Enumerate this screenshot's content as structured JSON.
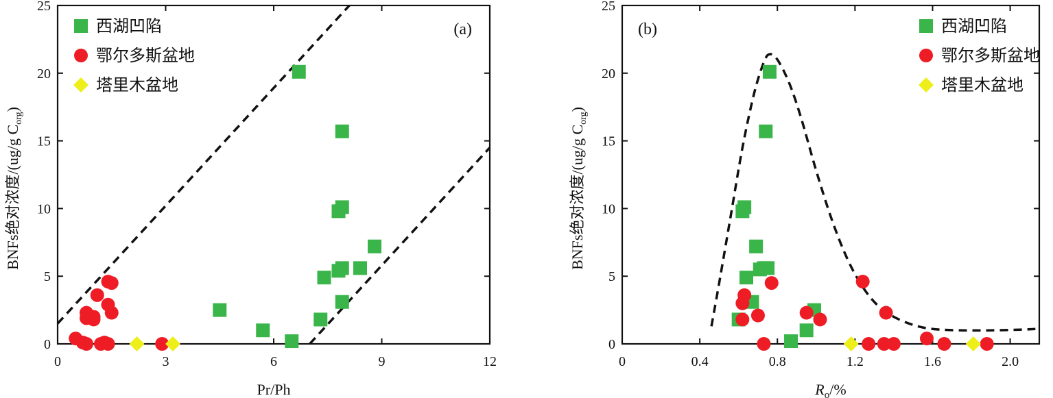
{
  "colors": {
    "xihu": "#3ab54a",
    "ordos": "#ee1c25",
    "tarim": "#eeee1a"
  },
  "legend": [
    {
      "key": "xihu",
      "label": "西湖凹陷",
      "shape": "square"
    },
    {
      "key": "ordos",
      "label": "鄂尔多斯盆地",
      "shape": "circle"
    },
    {
      "key": "tarim",
      "label": "塔里木盆地",
      "shape": "diamond"
    }
  ],
  "chart_data": [
    {
      "type": "scatter",
      "panel_label": "(a)",
      "xlabel": "Pr/Ph",
      "ylabel": {
        "main": "BNFs绝对浓度/(ug/g C",
        "sub": "org",
        "close": ")"
      },
      "xlim": [
        0,
        12
      ],
      "ylim": [
        0,
        25
      ],
      "xticks": [
        0,
        3,
        6,
        9,
        12
      ],
      "yticks": [
        0,
        5,
        10,
        15,
        20,
        25
      ],
      "legend_position": "top-left",
      "series": [
        {
          "key": "xihu",
          "name": "西湖凹陷",
          "points": [
            [
              6.7,
              20.1
            ],
            [
              7.9,
              15.7
            ],
            [
              7.9,
              10.1
            ],
            [
              7.8,
              9.8
            ],
            [
              8.8,
              7.2
            ],
            [
              7.4,
              4.9
            ],
            [
              7.8,
              5.4
            ],
            [
              7.9,
              5.6
            ],
            [
              8.4,
              5.6
            ],
            [
              7.9,
              3.1
            ],
            [
              7.3,
              1.8
            ],
            [
              4.5,
              2.5
            ],
            [
              5.7,
              1.0
            ],
            [
              6.5,
              0.2
            ]
          ]
        },
        {
          "key": "ordos",
          "name": "鄂尔多斯盆地",
          "points": [
            [
              1.4,
              4.6
            ],
            [
              1.5,
              4.5
            ],
            [
              1.1,
              3.6
            ],
            [
              1.4,
              2.9
            ],
            [
              1.5,
              2.3
            ],
            [
              0.8,
              2.3
            ],
            [
              0.8,
              1.9
            ],
            [
              1.0,
              2.0
            ],
            [
              1.0,
              1.8
            ],
            [
              0.5,
              0.4
            ],
            [
              0.7,
              0.1
            ],
            [
              0.8,
              0.0
            ],
            [
              1.2,
              0.0
            ],
            [
              1.3,
              0.1
            ],
            [
              1.4,
              0.0
            ],
            [
              2.9,
              0.0
            ]
          ]
        },
        {
          "key": "tarim",
          "name": "塔里木盆地",
          "points": [
            [
              2.2,
              0.0
            ],
            [
              3.2,
              0.0
            ]
          ]
        }
      ],
      "guides": [
        {
          "type": "line",
          "points": [
            [
              0,
              1.5
            ],
            [
              8.1,
              25
            ]
          ]
        },
        {
          "type": "line",
          "points": [
            [
              7.0,
              0
            ],
            [
              12,
              14.5
            ]
          ]
        }
      ]
    },
    {
      "type": "scatter",
      "panel_label": "(b)",
      "xlabel": {
        "main": "R",
        "sub": "o",
        "rest": "/%"
      },
      "ylabel": {
        "main": "BNFs绝对浓度/(ug/g C",
        "sub": "org",
        "close": ")"
      },
      "xlim": [
        0,
        2.15
      ],
      "ylim": [
        0,
        25
      ],
      "xticks": [
        0,
        0.4,
        0.8,
        1.2,
        1.6,
        2.0
      ],
      "xtick_labels": [
        "0",
        "0.4",
        "0.8",
        "1.2",
        "1.6",
        "2.0"
      ],
      "yticks": [
        0,
        5,
        10,
        15,
        20,
        25
      ],
      "legend_position": "top-right",
      "series": [
        {
          "key": "xihu",
          "name": "西湖凹陷",
          "points": [
            [
              0.76,
              20.1
            ],
            [
              0.74,
              15.7
            ],
            [
              0.63,
              10.1
            ],
            [
              0.62,
              9.8
            ],
            [
              0.69,
              7.2
            ],
            [
              0.64,
              4.9
            ],
            [
              0.71,
              5.5
            ],
            [
              0.73,
              5.6
            ],
            [
              0.75,
              5.6
            ],
            [
              0.67,
              3.1
            ],
            [
              0.6,
              1.8
            ],
            [
              0.99,
              2.5
            ],
            [
              0.95,
              1.0
            ],
            [
              0.87,
              0.2
            ]
          ]
        },
        {
          "key": "ordos",
          "name": "鄂尔多斯盆地",
          "points": [
            [
              0.77,
              4.5
            ],
            [
              1.24,
              4.6
            ],
            [
              0.63,
              3.6
            ],
            [
              0.62,
              3.0
            ],
            [
              0.62,
              1.8
            ],
            [
              0.7,
              2.1
            ],
            [
              0.95,
              2.3
            ],
            [
              1.02,
              1.8
            ],
            [
              1.36,
              2.3
            ],
            [
              0.73,
              0.0
            ],
            [
              1.27,
              0.0
            ],
            [
              1.35,
              0.0
            ],
            [
              1.4,
              0.0
            ],
            [
              1.57,
              0.4
            ],
            [
              1.66,
              0.0
            ],
            [
              1.88,
              0.0
            ]
          ]
        },
        {
          "key": "tarim",
          "name": "塔里木盆地",
          "points": [
            [
              1.18,
              0.0
            ],
            [
              1.81,
              0.0
            ]
          ]
        }
      ],
      "guides": [
        {
          "type": "curve",
          "points": [
            [
              0.46,
              1.3
            ],
            [
              0.5,
              4.5
            ],
            [
              0.56,
              9.5
            ],
            [
              0.62,
              14.5
            ],
            [
              0.68,
              18.5
            ],
            [
              0.73,
              20.8
            ],
            [
              0.76,
              21.4
            ],
            [
              0.8,
              21
            ],
            [
              0.86,
              19.3
            ],
            [
              0.92,
              16.8
            ],
            [
              1.0,
              12.8
            ],
            [
              1.08,
              9.2
            ],
            [
              1.16,
              6.3
            ],
            [
              1.24,
              4.2
            ],
            [
              1.32,
              2.8
            ],
            [
              1.4,
              2.0
            ],
            [
              1.5,
              1.4
            ],
            [
              1.6,
              1.1
            ],
            [
              1.75,
              1.0
            ],
            [
              1.9,
              1.0
            ],
            [
              2.05,
              1.05
            ],
            [
              2.13,
              1.1
            ]
          ]
        }
      ]
    }
  ]
}
